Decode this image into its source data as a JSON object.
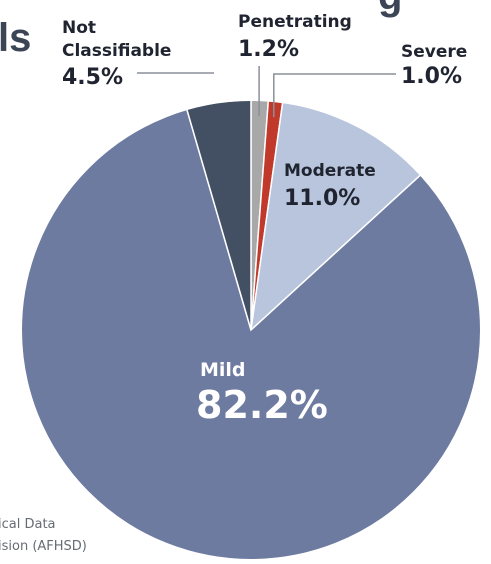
{
  "header": {
    "title_fragment": "ls",
    "title_fragment_top": "g"
  },
  "source": {
    "line1": "ical Data",
    "line2": "ision (AFHSD)"
  },
  "chart_data": {
    "type": "pie",
    "start": "12 o'clock, clockwise",
    "slices": [
      {
        "name": "Penetrating",
        "value": 1.2,
        "label": "1.2%",
        "color": "#a8a8a8"
      },
      {
        "name": "Severe",
        "value": 1.0,
        "label": "1.0%",
        "color": "#c0392b"
      },
      {
        "name": "Moderate",
        "value": 11.0,
        "label": "11.0%",
        "color": "#b8c5dc"
      },
      {
        "name": "Mild",
        "value": 82.2,
        "label": "82.2%",
        "color": "#6e7ba0"
      },
      {
        "name": "Not Classifiable",
        "value": 4.5,
        "label": "4.5%",
        "color": "#434f63"
      }
    ]
  }
}
